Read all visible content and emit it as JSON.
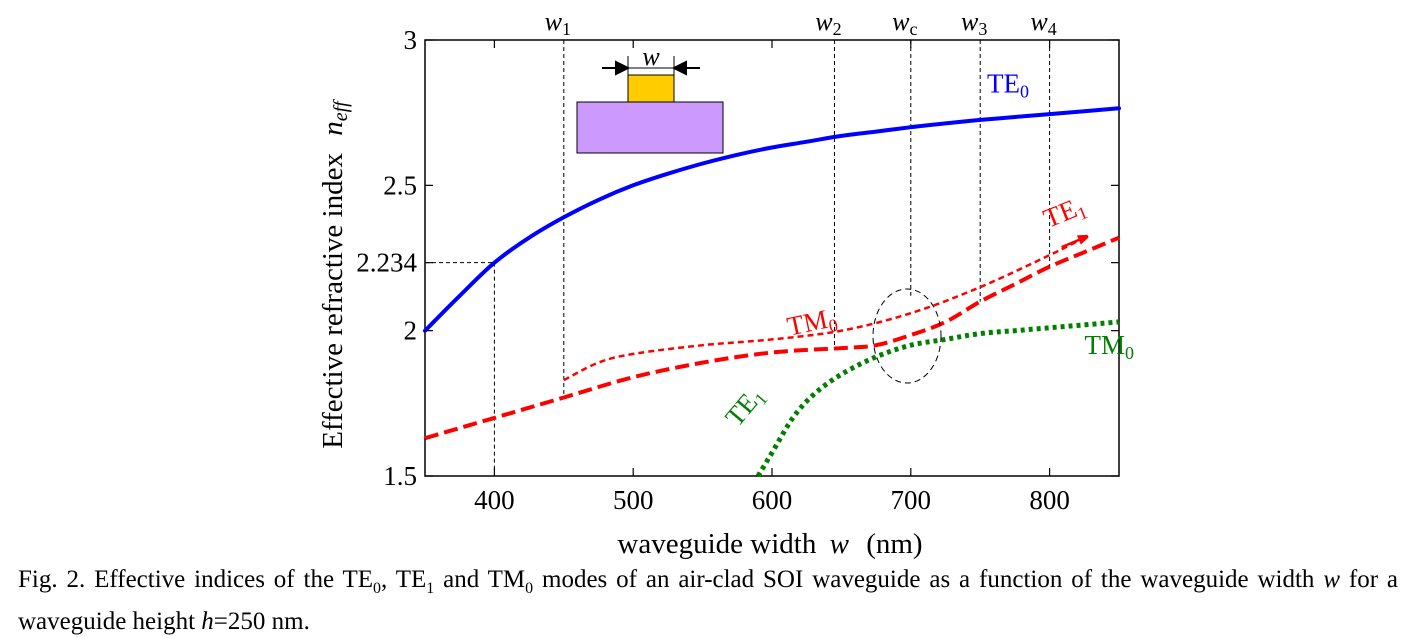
{
  "chart_data": {
    "type": "line",
    "xlabel": "waveguide width",
    "xlabel_var": "w",
    "xlabel_unit": "(nm)",
    "ylabel": "Effective refractive index",
    "ylabel_var": "n",
    "ylabel_var_sub": "eff",
    "xlim": [
      350,
      850
    ],
    "ylim": [
      1.5,
      3
    ],
    "x_ticks": [
      400,
      500,
      600,
      700,
      800
    ],
    "y_ticks": [
      1.5,
      2,
      2.234,
      2.5,
      3
    ],
    "y_tick_labels": [
      "1.5",
      "2",
      "2.234",
      "2.5",
      "3"
    ],
    "grid": false,
    "series": [
      {
        "style": "solid",
        "color": "#0000ff",
        "x": [
          350,
          375,
          400,
          425,
          450,
          475,
          500,
          525,
          550,
          575,
          600,
          625,
          650,
          675,
          700,
          725,
          750,
          775,
          800,
          825,
          850
        ],
        "y": [
          2.0,
          2.12,
          2.234,
          2.32,
          2.39,
          2.45,
          2.5,
          2.54,
          2.575,
          2.605,
          2.63,
          2.65,
          2.67,
          2.685,
          2.7,
          2.713,
          2.725,
          2.735,
          2.745,
          2.755,
          2.765
        ]
      },
      {
        "style": "dashed",
        "color": "#ff0000",
        "x": [
          350,
          400,
          450,
          500,
          550,
          600,
          650,
          675,
          700,
          725,
          750,
          775,
          800,
          825,
          850
        ],
        "y": [
          1.63,
          1.7,
          1.77,
          1.84,
          1.89,
          1.925,
          1.94,
          1.95,
          1.985,
          2.03,
          2.1,
          2.16,
          2.22,
          2.27,
          2.32
        ]
      },
      {
        "style": "short-dashed",
        "color": "#ff0000",
        "x": [
          450,
          475,
          500,
          550,
          600,
          650,
          700,
          750,
          800,
          825
        ],
        "y": [
          1.83,
          1.89,
          1.92,
          1.95,
          1.97,
          2.0,
          2.06,
          2.15,
          2.26,
          2.32
        ]
      },
      {
        "style": "dotted",
        "color": "#008000",
        "x": [
          590,
          600,
          615,
          630,
          650,
          675,
          700,
          725,
          750,
          775,
          800,
          825,
          850
        ],
        "y": [
          1.5,
          1.58,
          1.7,
          1.78,
          1.85,
          1.91,
          1.95,
          1.97,
          1.99,
          2.0,
          2.01,
          2.02,
          2.03
        ]
      }
    ],
    "vertical_markers": [
      {
        "x": 450,
        "label": "w",
        "sub": "1",
        "y_from": 1.77
      },
      {
        "x": 645,
        "label": "w",
        "sub": "2",
        "y_from": 1.94
      },
      {
        "x": 700,
        "label": "w",
        "sub": "c",
        "y_from": 2.12
      },
      {
        "x": 750,
        "label": "w",
        "sub": "3",
        "y_from": 2.1
      },
      {
        "x": 800,
        "label": "w",
        "sub": "4",
        "y_from": 2.22
      }
    ],
    "reference_point": {
      "x": 400,
      "y": 2.234
    },
    "annotations": [
      {
        "text": "TE",
        "sub": "0",
        "color": "#0000ff",
        "x": 770,
        "y": 2.82
      },
      {
        "text": "TE",
        "sub": "1",
        "color": "#ff0000",
        "x": 813,
        "y": 2.38
      },
      {
        "text": "TM",
        "sub": "0",
        "color": "#ff0000",
        "x": 630,
        "y": 2.0
      },
      {
        "text": "TM",
        "sub": "0",
        "color": "#008000",
        "x": 843,
        "y": 1.92
      },
      {
        "text": "TE",
        "sub": "1",
        "color": "#008000",
        "x": 585,
        "y": 1.72
      }
    ],
    "inset_label": "w"
  },
  "caption": {
    "part1": "Fig. 2. Effective indices of the TE",
    "sub1": "0",
    "part2": ", TE",
    "sub2": "1",
    "part3": " and TM",
    "sub3": "0",
    "part4": " modes of an air-clad SOI waveguide as a function of the waveguide width ",
    "var1": "w",
    "part5": " for a waveguide height ",
    "var2": "h",
    "part6": "=250 nm."
  }
}
